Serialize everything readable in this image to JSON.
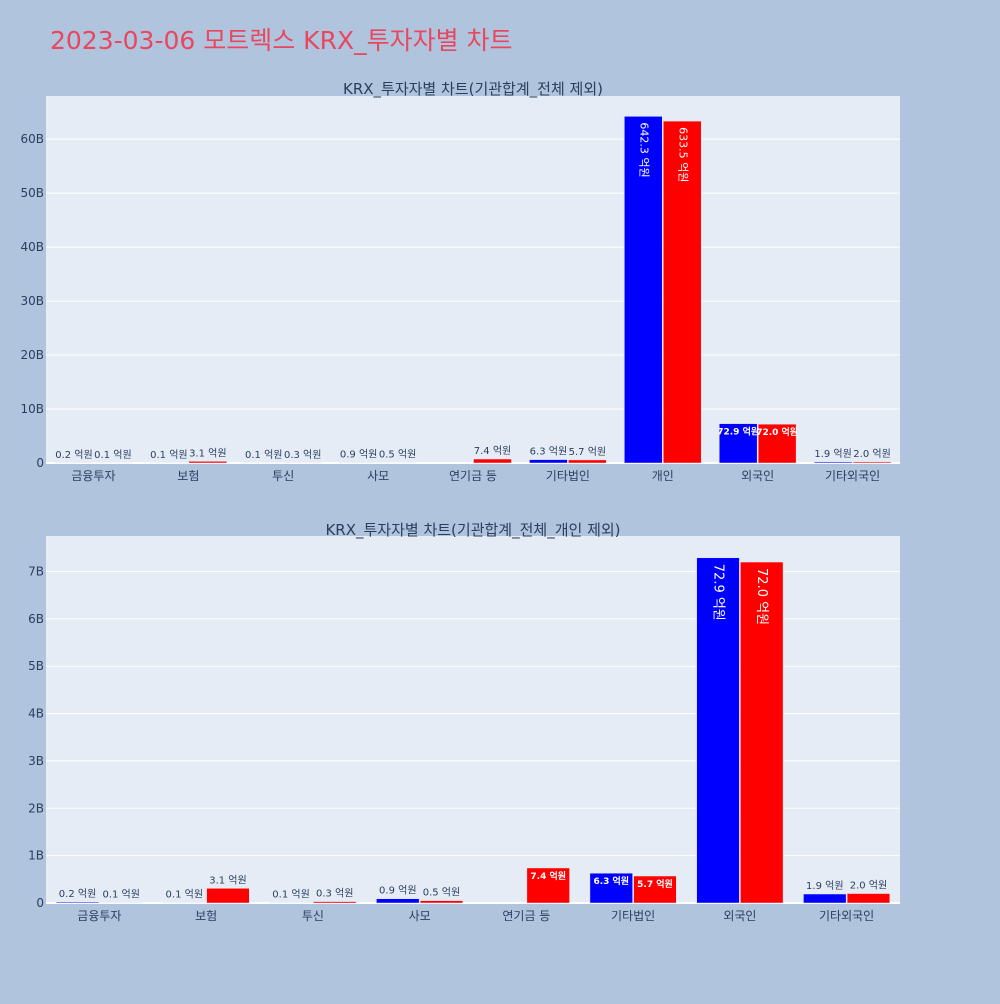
{
  "page": {
    "title": "2023-03-06 모트렉스 KRX_투자자별 차트",
    "title_color": "#E8475F",
    "background": "#B0C4DE",
    "plot_background": "#E5ECF6"
  },
  "chart_data": [
    {
      "type": "bar",
      "title": "KRX_투자자별 차트(기관합계_전체 제외)",
      "categories": [
        "금융투자",
        "보험",
        "투신",
        "사모",
        "연기금 등",
        "기타법인",
        "개인",
        "외국인",
        "기타외국인"
      ],
      "series": [
        {
          "color": "#0000FF",
          "values": [
            20000000,
            10000000,
            10000000,
            90000000,
            0,
            630000000,
            64230000000,
            7290000000,
            190000000
          ],
          "labels": [
            "0.2 억원",
            "0.1 억원",
            "0.1 억원",
            "0.9 억원",
            "",
            "6.3 억원",
            "642.3 억원",
            "72.9 억원",
            "1.9 억원"
          ]
        },
        {
          "color": "#FF0000",
          "values": [
            10000000,
            310000000,
            30000000,
            50000000,
            740000000,
            570000000,
            63350000000,
            7200000000,
            200000000
          ],
          "labels": [
            "0.1 억원",
            "3.1 억원",
            "0.3 억원",
            "0.5 억원",
            "7.4 억원",
            "5.7 억원",
            "633.5 억원",
            "72.0 억원",
            "2.0 억원"
          ]
        }
      ],
      "yticks": [
        0,
        10000000000,
        20000000000,
        30000000000,
        40000000000,
        50000000000,
        60000000000
      ],
      "ytick_labels": [
        "0",
        "10B",
        "20B",
        "30B",
        "40B",
        "50B",
        "60B"
      ],
      "ylim": [
        0,
        68000000000
      ],
      "grid": true,
      "legend": "none"
    },
    {
      "type": "bar",
      "title": "KRX_투자자별 차트(기관합계_전체_개인 제외)",
      "categories": [
        "금융투자",
        "보험",
        "투신",
        "사모",
        "연기금 등",
        "기타법인",
        "외국인",
        "기타외국인"
      ],
      "series": [
        {
          "color": "#0000FF",
          "values": [
            20000000,
            10000000,
            10000000,
            90000000,
            0,
            630000000,
            7290000000,
            190000000
          ],
          "labels": [
            "0.2 억원",
            "0.1 억원",
            "0.1 억원",
            "0.9 억원",
            "",
            "6.3 억원",
            "72.9 억원",
            "1.9 억원"
          ]
        },
        {
          "color": "#FF0000",
          "values": [
            10000000,
            310000000,
            30000000,
            50000000,
            740000000,
            570000000,
            7200000000,
            200000000
          ],
          "labels": [
            "0.1 억원",
            "3.1 억원",
            "0.3 억원",
            "0.5 억원",
            "7.4 억원",
            "5.7 억원",
            "72.0 억원",
            "2.0 억원"
          ]
        }
      ],
      "yticks": [
        0,
        1000000000,
        2000000000,
        3000000000,
        4000000000,
        5000000000,
        6000000000,
        7000000000
      ],
      "ytick_labels": [
        "0",
        "1B",
        "2B",
        "3B",
        "4B",
        "5B",
        "6B",
        "7B"
      ],
      "ylim": [
        0,
        7750000000
      ],
      "grid": true,
      "legend": "none"
    }
  ]
}
